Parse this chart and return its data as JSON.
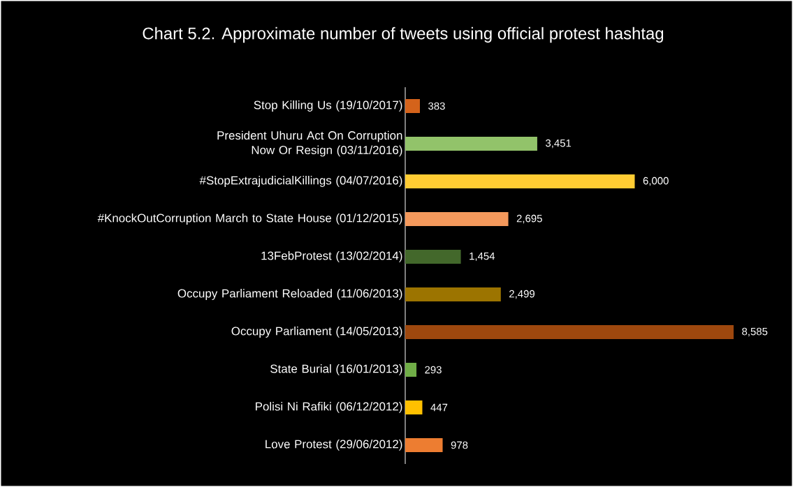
{
  "chart_data": {
    "type": "bar",
    "orientation": "horizontal",
    "title": "Chart 5.2. Approximate number of tweets using official protest hashtag",
    "categories": [
      "Stop Killing Us (19/10/2017)",
      "President Uhuru Act On Corruption Now Or Resign (03/11/2016)",
      "#StopExtrajudicialKillings (04/07/2016)",
      "#KnockOutCorruption March to State House (01/12/2015)",
      "13FebProtest (13/02/2014)",
      "Occupy Parliament Reloaded (11/06/2013)",
      "Occupy Parliament (14/05/2013)",
      "State Burial (16/01/2013)",
      "Polisi Ni Rafiki (06/12/2012)",
      "Love Protest (29/06/2012)"
    ],
    "values": [
      383,
      3451,
      6000,
      2695,
      1454,
      2499,
      8585,
      293,
      447,
      978
    ],
    "colors": [
      "#d4631b",
      "#92c36a",
      "#ffcc33",
      "#f4995c",
      "#43682b",
      "#9c7400",
      "#9e480e",
      "#70ad47",
      "#ffc000",
      "#ed7d31"
    ],
    "value_labels": [
      "383",
      "3,451",
      "6,000",
      "2,695",
      "1,454",
      "2,499",
      "8,585",
      "293",
      "447",
      "978"
    ]
  }
}
